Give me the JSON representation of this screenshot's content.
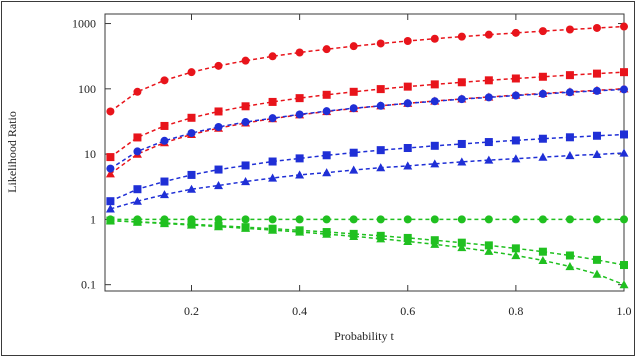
{
  "chart_data": {
    "type": "scatter",
    "title": "",
    "xlabel": "Probability t",
    "ylabel": "Likelihood Ratio",
    "x_scale": "linear",
    "y_scale": "log",
    "xlim": [
      0.04,
      1.0
    ],
    "ylim": [
      0.08,
      1400
    ],
    "x_ticks": [
      0.2,
      0.4,
      0.6,
      0.8,
      1.0
    ],
    "x_tick_labels": [
      "0.2",
      "0.4",
      "0.6",
      "0.8",
      "1.0"
    ],
    "y_ticks": [
      0.1,
      1,
      10,
      100,
      1000
    ],
    "y_tick_labels": [
      "0.1",
      "1",
      "10",
      "100",
      "1000"
    ],
    "grid": false,
    "line_style": "dashed",
    "x": [
      0.05,
      0.1,
      0.15,
      0.2,
      0.25,
      0.3,
      0.35,
      0.4,
      0.45,
      0.5,
      0.55,
      0.6,
      0.65,
      0.7,
      0.75,
      0.8,
      0.85,
      0.9,
      0.95,
      1.0
    ],
    "series": [
      {
        "color": "#e8141b",
        "marker": "circle",
        "values": [
          45,
          90,
          135,
          180,
          225,
          270,
          315,
          360,
          405,
          450,
          495,
          540,
          585,
          630,
          675,
          720,
          765,
          810,
          855,
          900
        ]
      },
      {
        "color": "#e8141b",
        "marker": "square",
        "values": [
          9,
          18,
          27,
          36,
          45,
          54,
          63,
          72,
          81,
          90,
          99,
          108,
          117,
          126,
          135,
          144,
          153,
          162,
          171,
          180
        ]
      },
      {
        "color": "#e8141b",
        "marker": "triangle",
        "values": [
          5,
          10,
          15,
          20,
          25,
          30,
          35,
          40,
          45,
          50,
          55,
          60,
          65,
          70,
          75,
          80,
          85,
          90,
          95,
          100
        ]
      },
      {
        "color": "#1f2fd6",
        "marker": "circle",
        "values": [
          6,
          11,
          16,
          21,
          26,
          31,
          35.5,
          40.5,
          45.5,
          50.5,
          55,
          60,
          64.5,
          69.5,
          74,
          79,
          83.5,
          88.5,
          93,
          98
        ]
      },
      {
        "color": "#1f2fd6",
        "marker": "square",
        "values": [
          1.9,
          2.9,
          3.8,
          4.8,
          5.8,
          6.7,
          7.7,
          8.6,
          9.6,
          10.5,
          11.5,
          12.4,
          13.4,
          14.3,
          15.3,
          16.2,
          17.2,
          18.1,
          19.1,
          20
        ]
      },
      {
        "color": "#1f2fd6",
        "marker": "triangle",
        "values": [
          1.45,
          1.9,
          2.4,
          2.9,
          3.3,
          3.8,
          4.3,
          4.8,
          5.2,
          5.7,
          6.2,
          6.6,
          7.1,
          7.6,
          8.1,
          8.5,
          9.0,
          9.5,
          9.9,
          10.4
        ]
      },
      {
        "color": "#20c020",
        "marker": "circle",
        "values": [
          1,
          1,
          1,
          1,
          1,
          1,
          1,
          1,
          1,
          1,
          1,
          1,
          1,
          1,
          1,
          1,
          1,
          1,
          1,
          1
        ]
      },
      {
        "color": "#20c020",
        "marker": "square",
        "values": [
          0.96,
          0.92,
          0.88,
          0.84,
          0.8,
          0.76,
          0.72,
          0.68,
          0.64,
          0.6,
          0.56,
          0.52,
          0.48,
          0.44,
          0.4,
          0.36,
          0.32,
          0.28,
          0.24,
          0.2
        ]
      },
      {
        "color": "#20c020",
        "marker": "triangle",
        "values": [
          0.955,
          0.91,
          0.865,
          0.82,
          0.775,
          0.73,
          0.685,
          0.64,
          0.595,
          0.55,
          0.505,
          0.46,
          0.415,
          0.37,
          0.325,
          0.28,
          0.235,
          0.19,
          0.145,
          0.1
        ]
      }
    ]
  }
}
